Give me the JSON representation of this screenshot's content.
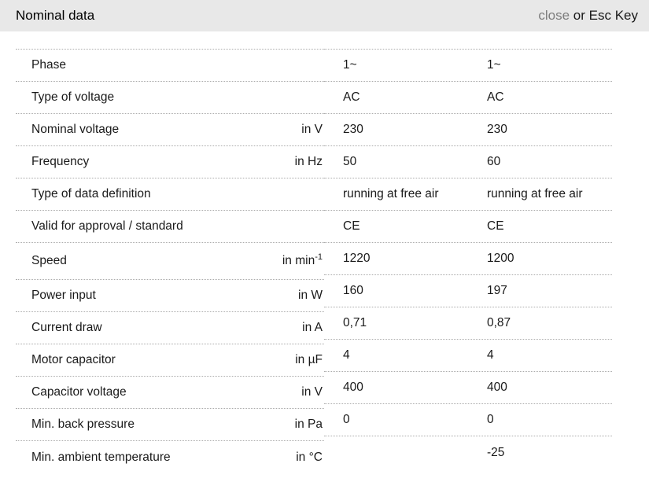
{
  "header": {
    "title": "Nominal data",
    "close_label": "close",
    "close_suffix": " or Esc Key"
  },
  "colors": {
    "header_bg": "#e8e8e8",
    "close_link": "#7d7d7d",
    "text": "#1a1a1a",
    "divider": "#ababab"
  },
  "table": {
    "tall_row_index": 6,
    "rows": [
      {
        "label": "Phase",
        "unit": "",
        "values": [
          "1~",
          "1~"
        ]
      },
      {
        "label": "Type of voltage",
        "unit": "",
        "values": [
          "AC",
          "AC"
        ]
      },
      {
        "label": "Nominal voltage",
        "unit": "in V",
        "values": [
          "230",
          "230"
        ]
      },
      {
        "label": "Frequency",
        "unit": "in Hz",
        "values": [
          "50",
          "60"
        ]
      },
      {
        "label": "Type of data definition",
        "unit": "",
        "values": [
          "running at free air",
          "running at free air"
        ]
      },
      {
        "label": "Valid for approval / standard",
        "unit": "",
        "values": [
          "CE",
          "CE"
        ]
      },
      {
        "label": "Speed",
        "unit": "in min",
        "unit_sup": "-1",
        "values": [
          "1220",
          "1200"
        ]
      },
      {
        "label": "Power input",
        "unit": "in W",
        "values": [
          "160",
          "197"
        ]
      },
      {
        "label": "Current draw",
        "unit": "in A",
        "values": [
          "0,71",
          "0,87"
        ]
      },
      {
        "label": "Motor capacitor",
        "unit": "in µF",
        "values": [
          "4",
          "4"
        ]
      },
      {
        "label": "Capacitor voltage",
        "unit": "in V",
        "values": [
          "400",
          "400"
        ]
      },
      {
        "label": "Min. back pressure",
        "unit": "in Pa",
        "values": [
          "0",
          "0"
        ]
      },
      {
        "label": "Min. ambient temperature",
        "unit": "in °C",
        "values": [
          "",
          "-25"
        ]
      }
    ]
  }
}
